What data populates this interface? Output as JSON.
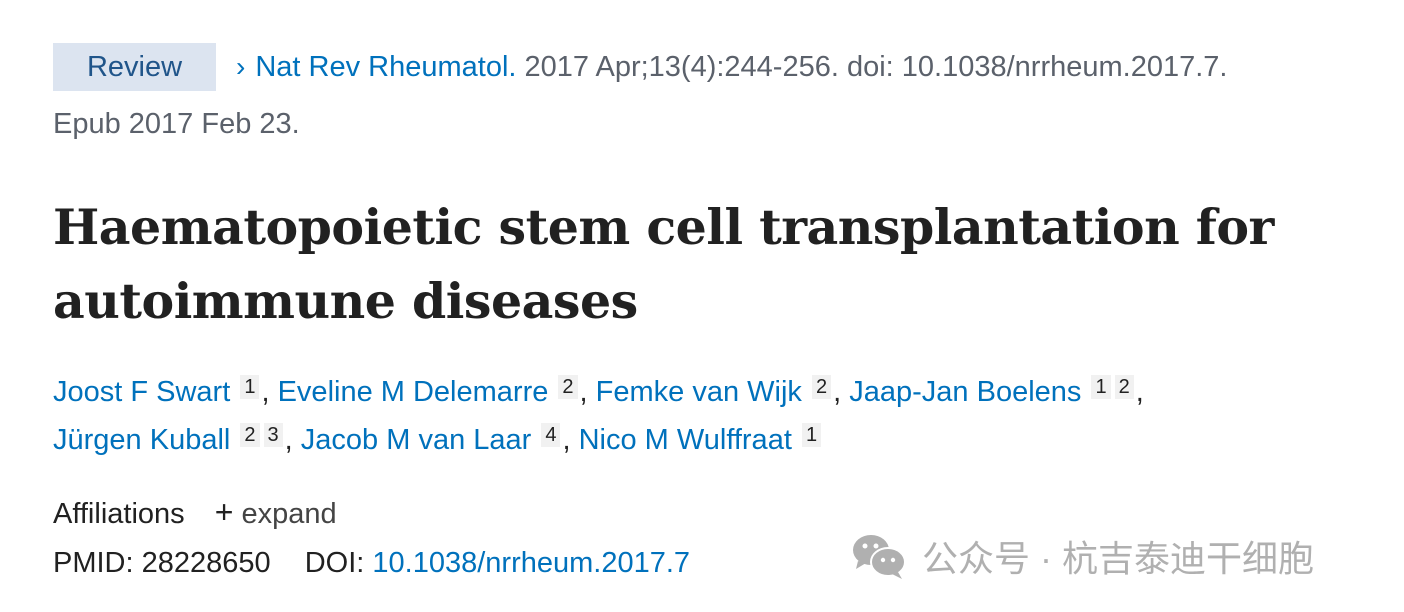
{
  "citation": {
    "badge": "Review",
    "journal": "Nat Rev Rheumatol.",
    "details": " 2017 Apr;13(4):244-256. doi: 10.1038/nrrheum.2017.7.",
    "epub": "Epub 2017 Feb 23."
  },
  "title": "Haematopoietic stem cell transplantation for autoimmune diseases",
  "authors": [
    {
      "name": "Joost F Swart",
      "affs": [
        "1"
      ]
    },
    {
      "name": "Eveline M Delemarre",
      "affs": [
        "2"
      ]
    },
    {
      "name": "Femke van Wijk",
      "affs": [
        "2"
      ]
    },
    {
      "name": "Jaap-Jan Boelens",
      "affs": [
        "1",
        "2"
      ]
    },
    {
      "name": "Jürgen Kuball",
      "affs": [
        "2",
        "3"
      ]
    },
    {
      "name": "Jacob M van Laar",
      "affs": [
        "4"
      ]
    },
    {
      "name": "Nico M Wulffraat",
      "affs": [
        "1"
      ]
    }
  ],
  "affiliations": {
    "label": "Affiliations",
    "expand": "expand"
  },
  "ids": {
    "pmid_label": "PMID:",
    "pmid": "28228650",
    "doi_label": "DOI:",
    "doi": "10.1038/nrrheum.2017.7"
  },
  "watermark": {
    "icon": "wechat-icon",
    "text": "公众号 · 杭吉泰迪干细胞"
  }
}
